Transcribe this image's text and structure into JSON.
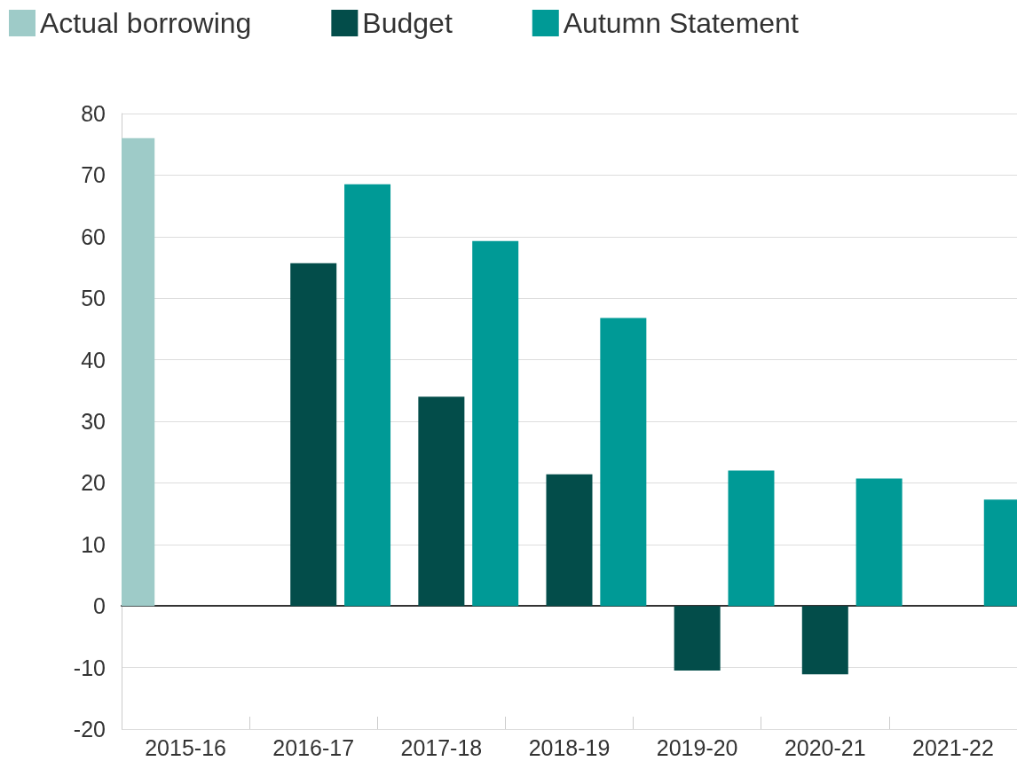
{
  "chart_data": {
    "type": "bar",
    "categories": [
      "2015-16",
      "2016-17",
      "2017-18",
      "2018-19",
      "2019-20",
      "2020-21",
      "2021-22"
    ],
    "series": [
      {
        "name": "Actual borrowing",
        "color": "#9ecbc8",
        "values": [
          76,
          null,
          null,
          null,
          null,
          null,
          null
        ]
      },
      {
        "name": "Budget",
        "color": "#034d4a",
        "values": [
          null,
          55.7,
          34,
          21.4,
          -10.5,
          -11.1,
          null
        ]
      },
      {
        "name": "Autumn Statement",
        "color": "#009a96",
        "values": [
          null,
          68.5,
          59.3,
          46.8,
          22,
          20.7,
          17.3
        ]
      }
    ],
    "ylim": [
      -20,
      80
    ],
    "yticks": [
      -20,
      -10,
      0,
      10,
      20,
      30,
      40,
      50,
      60,
      70,
      80
    ],
    "grid": "y",
    "legend": "top left"
  }
}
